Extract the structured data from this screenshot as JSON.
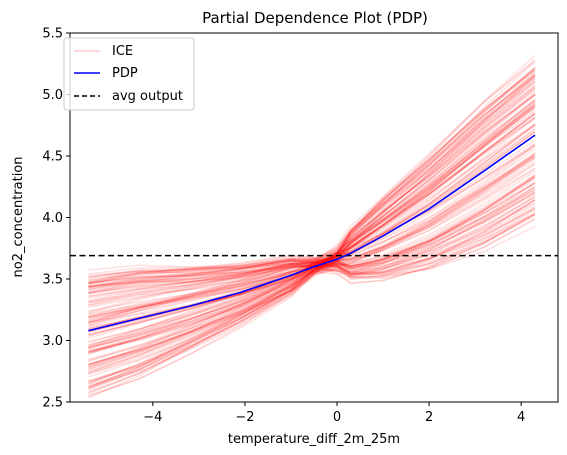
{
  "chart_data": {
    "type": "line",
    "title": "Partial Dependence Plot (PDP)",
    "xlabel": "temperature_diff_2m_25m",
    "ylabel": "no2_concentration",
    "xlim": [
      -5.8,
      4.8
    ],
    "ylim": [
      2.5,
      5.5
    ],
    "xticks": [
      -4,
      -2,
      0,
      2,
      4
    ],
    "yticks": [
      2.5,
      3.0,
      3.5,
      4.0,
      4.5,
      5.0,
      5.5
    ],
    "xtick_labels": [
      "−4",
      "−2",
      "0",
      "2",
      "4"
    ],
    "ytick_labels": [
      "2.5",
      "3.0",
      "3.5",
      "4.0",
      "4.5",
      "5.0",
      "5.5"
    ],
    "grid": false,
    "legend_position": "top-left",
    "legend": [
      "ICE",
      "PDP",
      "avg output"
    ],
    "x": [
      -5.4,
      -4.3,
      -3.2,
      -2.1,
      -1.0,
      -0.5,
      0.0,
      0.3,
      1.0,
      2.0,
      3.2,
      4.3
    ],
    "series": [
      {
        "name": "PDP",
        "color": "#0000ff",
        "values": [
          3.08,
          3.18,
          3.28,
          3.39,
          3.53,
          3.6,
          3.66,
          3.71,
          3.85,
          4.07,
          4.38,
          4.67
        ]
      }
    ],
    "ice": {
      "name": "ICE",
      "color": "#ff0000",
      "opacity": 0.12,
      "count": 140,
      "start_range": [
        2.55,
        3.55
      ],
      "end_range": [
        3.98,
        5.3
      ]
    },
    "reference_line": {
      "name": "avg output",
      "y": 3.69,
      "color": "#000000",
      "style": "dashed"
    }
  }
}
